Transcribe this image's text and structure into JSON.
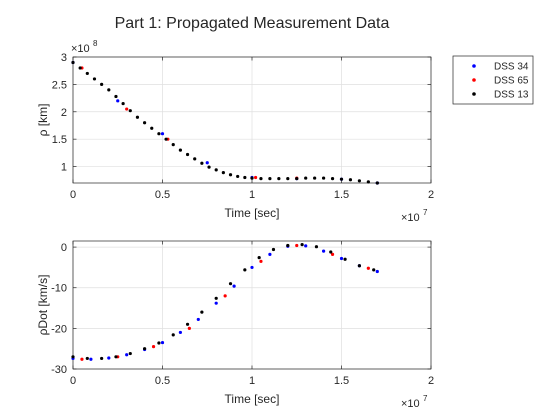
{
  "chart_data": [
    {
      "type": "scatter",
      "title": "Part 1: Propagated Measurement Data",
      "xlabel": "Time [sec]",
      "ylabel": "ρ [km]",
      "x_exponent_label": "×10",
      "x_exponent": "7",
      "y_exponent_label": "×10",
      "y_exponent": "8",
      "xlim": [
        0,
        2
      ],
      "ylim": [
        0.7,
        3
      ],
      "xticks": [
        0,
        0.5,
        1,
        1.5,
        2
      ],
      "yticks": [
        1,
        1.5,
        2,
        2.5,
        3
      ],
      "xtick_labels": [
        "0",
        "0.5",
        "1",
        "1.5",
        "2"
      ],
      "ytick_labels": [
        "1",
        "1.5",
        "2",
        "2.5",
        "3"
      ],
      "grid": true,
      "legend": "outside-right",
      "series": [
        {
          "name": "DSS 34",
          "color": "#0000ff",
          "x": [
            0.0,
            0.25,
            0.5,
            0.75,
            1.0,
            1.25,
            1.5,
            1.7
          ],
          "y": [
            2.9,
            2.2,
            1.6,
            1.07,
            0.8,
            0.78,
            0.77,
            0.7
          ]
        },
        {
          "name": "DSS 65",
          "color": "#ff0000",
          "x": [
            0.05,
            0.3,
            0.53,
            1.02,
            1.25
          ],
          "y": [
            2.8,
            2.05,
            1.5,
            0.8,
            0.79
          ]
        },
        {
          "name": "DSS 13",
          "color": "#000000",
          "x": [
            0.0,
            0.04,
            0.08,
            0.12,
            0.16,
            0.2,
            0.24,
            0.28,
            0.32,
            0.36,
            0.4,
            0.44,
            0.48,
            0.52,
            0.56,
            0.6,
            0.64,
            0.68,
            0.72,
            0.76,
            0.8,
            0.84,
            0.88,
            0.92,
            0.96,
            1.0,
            1.05,
            1.1,
            1.15,
            1.2,
            1.25,
            1.3,
            1.35,
            1.4,
            1.45,
            1.5,
            1.55,
            1.6,
            1.65,
            1.7
          ],
          "y": [
            2.9,
            2.8,
            2.7,
            2.6,
            2.5,
            2.4,
            2.28,
            2.15,
            2.02,
            1.9,
            1.8,
            1.7,
            1.6,
            1.5,
            1.4,
            1.3,
            1.22,
            1.14,
            1.06,
            0.99,
            0.94,
            0.89,
            0.85,
            0.82,
            0.8,
            0.79,
            0.78,
            0.78,
            0.78,
            0.78,
            0.78,
            0.79,
            0.79,
            0.79,
            0.78,
            0.77,
            0.76,
            0.74,
            0.72,
            0.7
          ]
        }
      ]
    },
    {
      "type": "scatter",
      "xlabel": "Time [sec]",
      "ylabel": "ρDot [km/s]",
      "x_exponent_label": "×10",
      "x_exponent": "7",
      "xlim": [
        0,
        2
      ],
      "ylim": [
        -30,
        1.5
      ],
      "xticks": [
        0,
        0.5,
        1,
        1.5,
        2
      ],
      "yticks": [
        -30,
        -20,
        -10,
        0
      ],
      "xtick_labels": [
        "0",
        "0.5",
        "1",
        "1.5",
        "2"
      ],
      "ytick_labels": [
        "-30",
        "-20",
        "-10",
        "0"
      ],
      "grid": true,
      "series": [
        {
          "name": "DSS 34",
          "color": "#0000ff",
          "x": [
            0.0,
            0.1,
            0.2,
            0.3,
            0.4,
            0.5,
            0.6,
            0.7,
            0.8,
            0.9,
            1.0,
            1.1,
            1.2,
            1.3,
            1.4,
            1.5,
            1.6,
            1.7
          ],
          "y": [
            -27.4,
            -27.6,
            -27.3,
            -26.5,
            -25.2,
            -23.5,
            -21.0,
            -17.8,
            -13.8,
            -9.6,
            -5.0,
            -1.8,
            0.2,
            0.3,
            -1.0,
            -2.8,
            -4.6,
            -6.0
          ]
        },
        {
          "name": "DSS 65",
          "color": "#ff0000",
          "x": [
            0.05,
            0.25,
            0.45,
            0.65,
            0.85,
            1.05,
            1.25,
            1.45,
            1.65
          ],
          "y": [
            -27.6,
            -27.0,
            -24.5,
            -20.0,
            -12.0,
            -3.5,
            0.4,
            -1.8,
            -5.2
          ]
        },
        {
          "name": "DSS 13",
          "color": "#000000",
          "x": [
            0.0,
            0.08,
            0.16,
            0.24,
            0.32,
            0.4,
            0.48,
            0.56,
            0.64,
            0.72,
            0.8,
            0.88,
            0.96,
            1.04,
            1.12,
            1.2,
            1.28,
            1.36,
            1.44,
            1.52,
            1.6,
            1.68
          ],
          "y": [
            -27.0,
            -27.4,
            -27.4,
            -27.0,
            -26.2,
            -25.0,
            -23.6,
            -21.6,
            -19.0,
            -16.0,
            -12.6,
            -9.0,
            -5.6,
            -2.6,
            -0.6,
            0.4,
            0.6,
            0.1,
            -1.2,
            -3.0,
            -4.6,
            -5.6
          ]
        }
      ]
    }
  ]
}
